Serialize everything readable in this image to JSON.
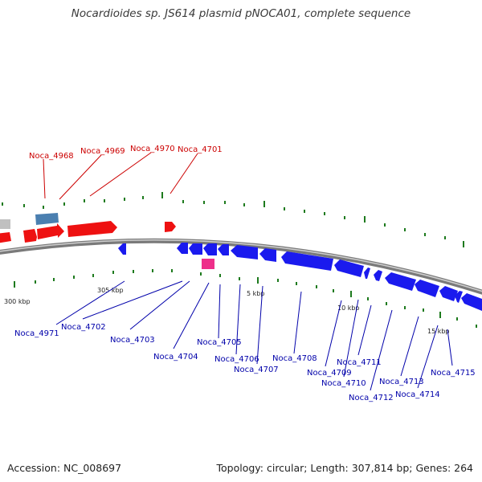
{
  "title": "Nocardioides sp. JS614 plasmid pNOCA01, complete sequence",
  "footer": {
    "accession": "Accession: NC_008697",
    "topology": "Topology: circular; Length: 307,814 bp; Genes: 264"
  },
  "colors": {
    "forward": "#ee1111",
    "reverse": "#1a1aee",
    "rna": "#4a7fb0",
    "pseudo": "#ee2f8a",
    "grey": "#c0c0c0",
    "tick": "#1d7a1d",
    "label_forward": "#cc0000",
    "label_reverse": "#0000aa"
  },
  "scale_labels": [
    "300 kbp",
    "305 kbp",
    "5 kbp",
    "10 kbp",
    "15 kbp"
  ],
  "labels_forward": [
    "Noca_4968",
    "Noca_4969",
    "Noca_4970",
    "Noca_4701"
  ],
  "labels_reverse": [
    "Noca_4971",
    "Noca_4702",
    "Noca_4703",
    "Noca_4704",
    "Noca_4705",
    "Noca_4706",
    "Noca_4707",
    "Noca_4708",
    "Noca_4709",
    "Noca_4710",
    "Noca_4711",
    "Noca_4712",
    "Noca_4713",
    "Noca_4714",
    "Noca_4715"
  ]
}
